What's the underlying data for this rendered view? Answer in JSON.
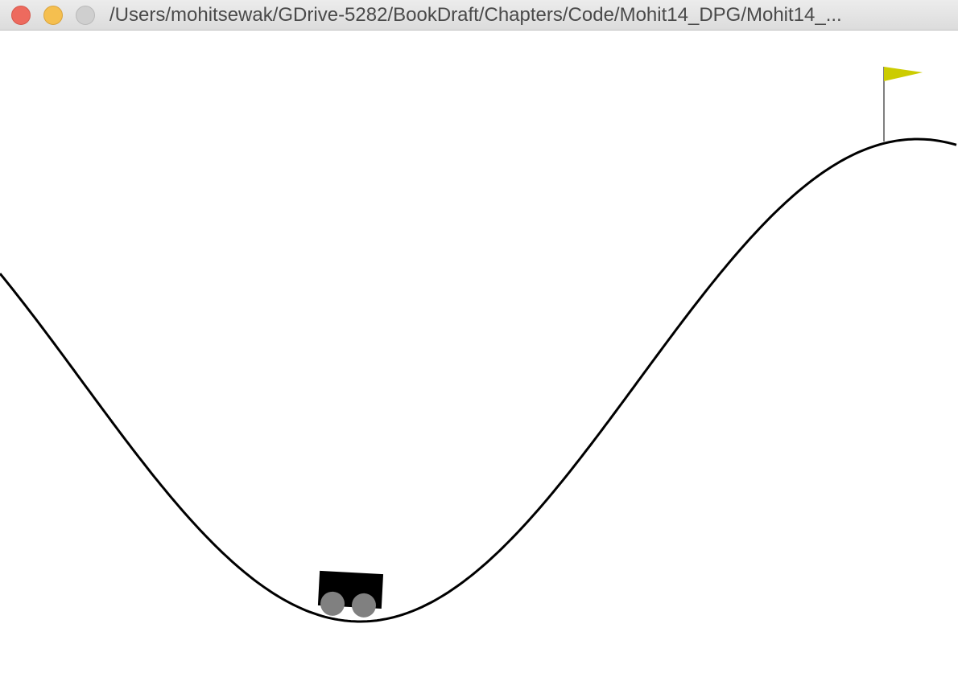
{
  "window": {
    "title": "/Users/mohitsewak/GDrive-5282/BookDraft/Chapters/Code/Mohit14_DPG/Mohit14_...",
    "controls": [
      "close",
      "minimize",
      "zoom"
    ]
  },
  "scene": {
    "environment": "mountain-car",
    "colors": {
      "background": "#ffffff",
      "track": "#000000",
      "car_body": "#000000",
      "wheels": "#808080",
      "flag": "#cccc00",
      "flagpole": "#000000"
    },
    "car_tilt_degrees": 3
  }
}
